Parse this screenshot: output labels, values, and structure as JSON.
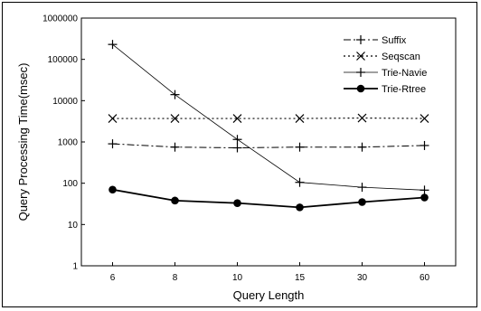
{
  "chart_data": {
    "type": "line",
    "title": "",
    "xlabel": "Query Length",
    "ylabel": "Query Processing Time(msec)",
    "y_scale": "log",
    "ylim": [
      1,
      1000000
    ],
    "yticks": [
      "1",
      "10",
      "100",
      "1000",
      "10000",
      "100000",
      "1000000"
    ],
    "categories": [
      "6",
      "8",
      "10",
      "15",
      "30",
      "60"
    ],
    "grid": false,
    "legend_position": "top-right",
    "series": [
      {
        "name": "Suffix",
        "marker": "plus",
        "line": "dash-dot",
        "values": [
          900,
          750,
          720,
          750,
          750,
          820
        ]
      },
      {
        "name": "Seqscan",
        "marker": "x",
        "line": "dotted",
        "values": [
          3700,
          3700,
          3700,
          3700,
          3800,
          3700
        ]
      },
      {
        "name": "Trie-Navie",
        "marker": "plus",
        "line": "solid-thin",
        "values": [
          230000,
          14000,
          1150,
          105,
          80,
          68
        ]
      },
      {
        "name": "Trie-Rtree",
        "marker": "circle",
        "line": "solid-thick",
        "values": [
          70,
          38,
          33,
          26,
          35,
          45
        ]
      }
    ]
  }
}
